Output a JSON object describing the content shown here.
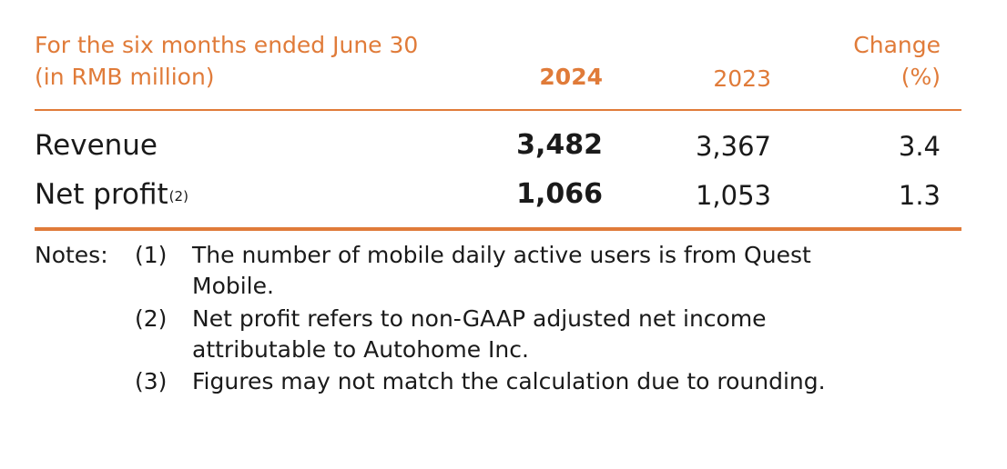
{
  "header": {
    "period_label": "For the six months ended June 30",
    "unit_label": "(in RMB million)",
    "col_2024": "2024",
    "col_2023": "2023",
    "col_change_line1": "Change",
    "col_change_line2": "(%)"
  },
  "rows": [
    {
      "label": "Revenue",
      "sup": "",
      "v2024": "3,482",
      "v2023": "3,367",
      "change": "3.4"
    },
    {
      "label": "Net profit",
      "sup": "(2)",
      "v2024": "1,066",
      "v2023": "1,053",
      "change": "1.3"
    }
  ],
  "notes": {
    "title": "Notes:",
    "items": [
      {
        "num": "(1)",
        "line1": "The number of mobile daily active users is from Quest",
        "line2": "Mobile."
      },
      {
        "num": "(2)",
        "line1": "Net profit refers to non-GAAP adjusted net income",
        "line2": "attributable to Autohome Inc."
      },
      {
        "num": "(3)",
        "line1": "Figures may not match the calculation due to rounding.",
        "line2": ""
      }
    ]
  },
  "colors": {
    "accent": "#e07b39",
    "text": "#1a1a1a"
  }
}
